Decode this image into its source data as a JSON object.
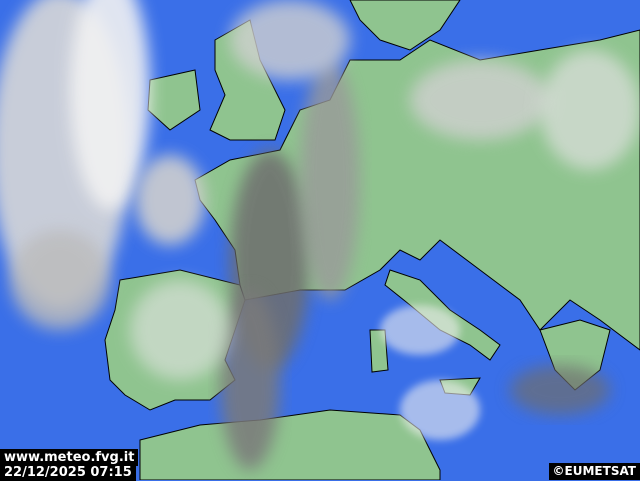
{
  "overlay": {
    "website": "www.meteo.fvg.it",
    "timestamp": "22/12/2025 07:15",
    "credit": "©EUMETSAT"
  },
  "colors": {
    "sea": "#3a6fe8",
    "land": "#8fc48f",
    "cloud_light": "#e8e8e8",
    "cloud_dark": "#6e6e6e",
    "borders": "#000000",
    "label_bg": "#000000",
    "label_text": "#ffffff"
  }
}
